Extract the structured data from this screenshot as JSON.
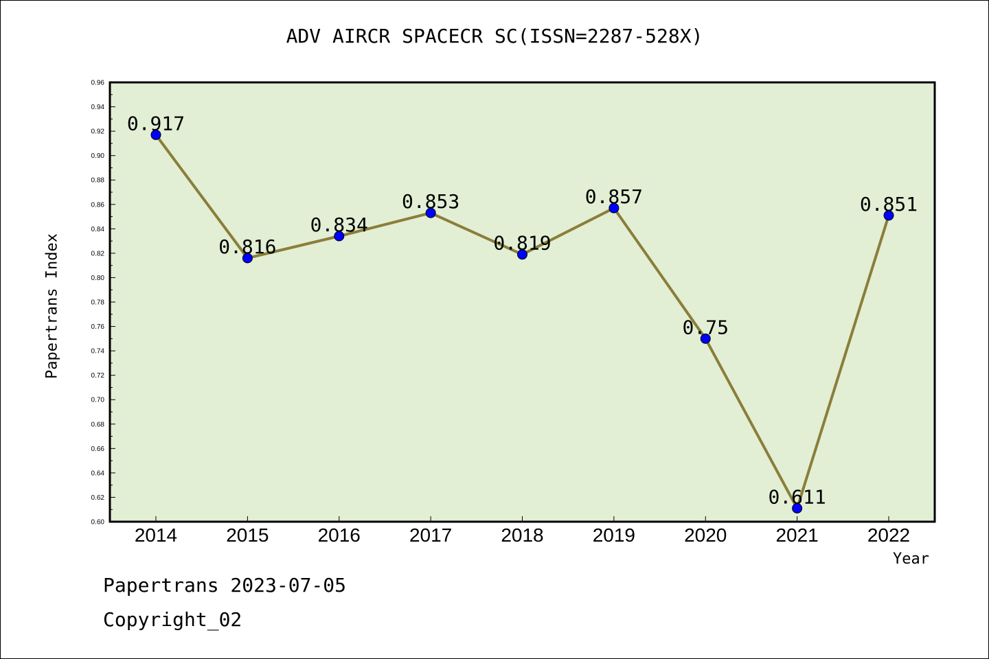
{
  "title": "ADV AIRCR SPACECR SC(ISSN=2287-528X)",
  "footer": {
    "line1": "Papertrans 2023-07-05",
    "line2": "Copyright_02"
  },
  "colors": {
    "plot_bg": "#e2efd5",
    "line": "#8a7e3a",
    "marker": "#0000ff"
  },
  "chart_data": {
    "type": "line",
    "title": "ADV AIRCR SPACECR SC(ISSN=2287-528X)",
    "xlabel": "Year",
    "ylabel": "Papertrans Index",
    "categories": [
      "2014",
      "2015",
      "2016",
      "2017",
      "2018",
      "2019",
      "2020",
      "2021",
      "2022"
    ],
    "values": [
      0.917,
      0.816,
      0.834,
      0.853,
      0.819,
      0.857,
      0.75,
      0.611,
      0.851
    ],
    "value_labels": [
      "0.917",
      "0.816",
      "0.834",
      "0.853",
      "0.819",
      "0.857",
      "0.75",
      "0.611",
      "0.851"
    ],
    "ylim": [
      0.6,
      0.96
    ],
    "yticks": [
      "0.60",
      "0.62",
      "0.64",
      "0.66",
      "0.68",
      "0.70",
      "0.72",
      "0.74",
      "0.76",
      "0.78",
      "0.80",
      "0.82",
      "0.84",
      "0.86",
      "0.88",
      "0.90",
      "0.92",
      "0.94",
      "0.96"
    ],
    "grid": false,
    "legend": "none"
  }
}
